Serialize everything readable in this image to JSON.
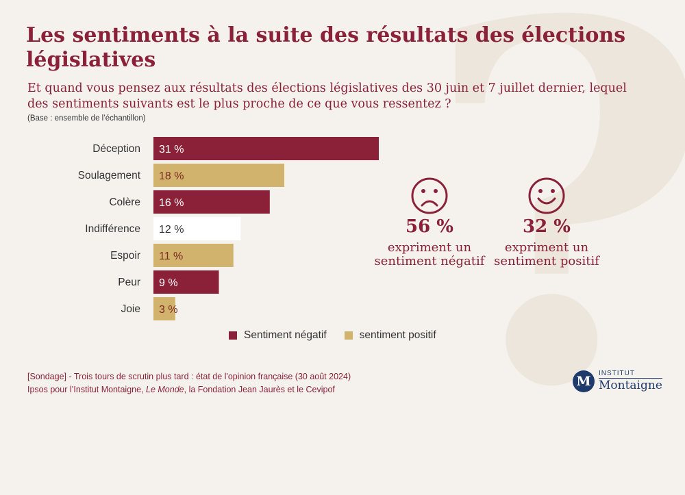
{
  "header": {
    "title": "Les sentiments à la suite des résultats des élections législatives",
    "subtitle": "Et quand vous pensez aux résultats des élections législatives des 30 juin et 7 juillet dernier, lequel des sentiments suivants est le plus proche de ce que vous ressentez ?",
    "base": "(Base : ensemble de l’échantillon)"
  },
  "chart_data": {
    "type": "bar",
    "orientation": "horizontal",
    "categories": [
      "Déception",
      "Soulagement",
      "Colère",
      "Indifférence",
      "Espoir",
      "Peur",
      "Joie"
    ],
    "values": [
      31,
      18,
      16,
      12,
      11,
      9,
      3
    ],
    "value_labels": [
      "31 %",
      "18 %",
      "16 %",
      "12 %",
      "11 %",
      "9 %",
      "3 %"
    ],
    "sentiment": [
      "negatif",
      "positif",
      "negatif",
      "neutre",
      "positif",
      "negatif",
      "positif"
    ],
    "xlim": [
      0,
      31
    ],
    "colors": {
      "negatif": "#8a2139",
      "positif": "#d2b36e",
      "neutre": "#ffffff"
    },
    "legend": [
      {
        "label": "Sentiment négatif",
        "color": "#8a2139"
      },
      {
        "label": "sentiment positif",
        "color": "#d2b36e"
      }
    ]
  },
  "stats": {
    "negative": {
      "icon": "sad-face-icon",
      "value": "56 %",
      "description": "expriment un sentiment négatif"
    },
    "positive": {
      "icon": "happy-face-icon",
      "value": "32 %",
      "description": "expriment un sentiment positif"
    }
  },
  "footer": {
    "line1": "[Sondage] - Trois tours de scrutin plus tard : état de l'opinion française (30 août 2024)",
    "line2_before": "Ipsos pour l’Institut Montaigne, ",
    "line2_em": "Le Monde",
    "line2_after": ", la Fondation Jean Jaurès et le Cevipof"
  },
  "logo": {
    "letter": "M",
    "institute": "INSTITUT",
    "name": "Montaigne"
  },
  "background": {
    "glyph": "?"
  }
}
